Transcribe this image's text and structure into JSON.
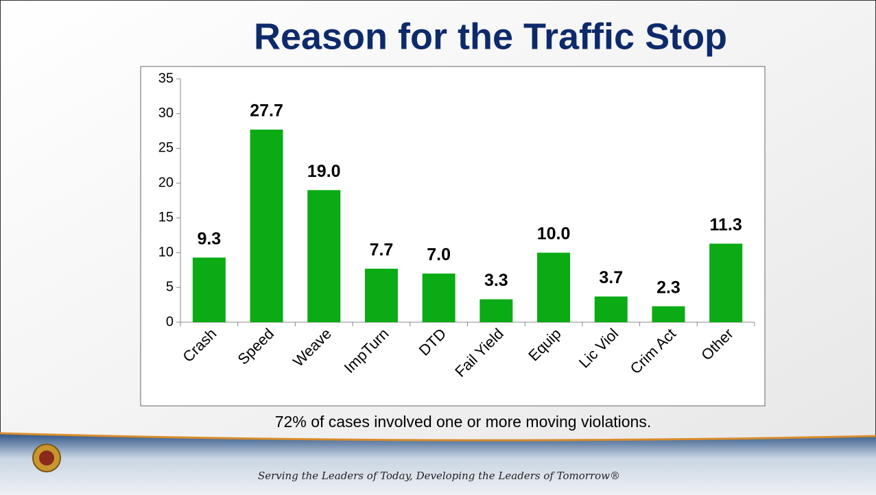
{
  "chart_data": {
    "type": "bar",
    "title": "Reason for the Traffic Stop",
    "categories": [
      "Crash",
      "Speed",
      "Weave",
      "ImpTurn",
      "DTD",
      "Fail Yield",
      "Equip",
      "Lic Viol",
      "Crim Act",
      "Other"
    ],
    "values": [
      9.3,
      27.7,
      19.0,
      7.7,
      7.0,
      3.3,
      10.0,
      3.7,
      2.3,
      11.3
    ],
    "value_labels": [
      "9.3",
      "27.7",
      "19.0",
      "7.7",
      "7.0",
      "3.3",
      "10.0",
      "3.7",
      "2.3",
      "11.3"
    ],
    "color": "#0aab14",
    "ylim": [
      0,
      35
    ],
    "yticks": [
      0,
      5,
      10,
      15,
      20,
      25,
      30,
      35
    ],
    "grid": false,
    "caption": "72% of cases involved one or more moving violations."
  },
  "footer": "Serving the Leaders of Today, Developing the Leaders of Tomorrow®"
}
